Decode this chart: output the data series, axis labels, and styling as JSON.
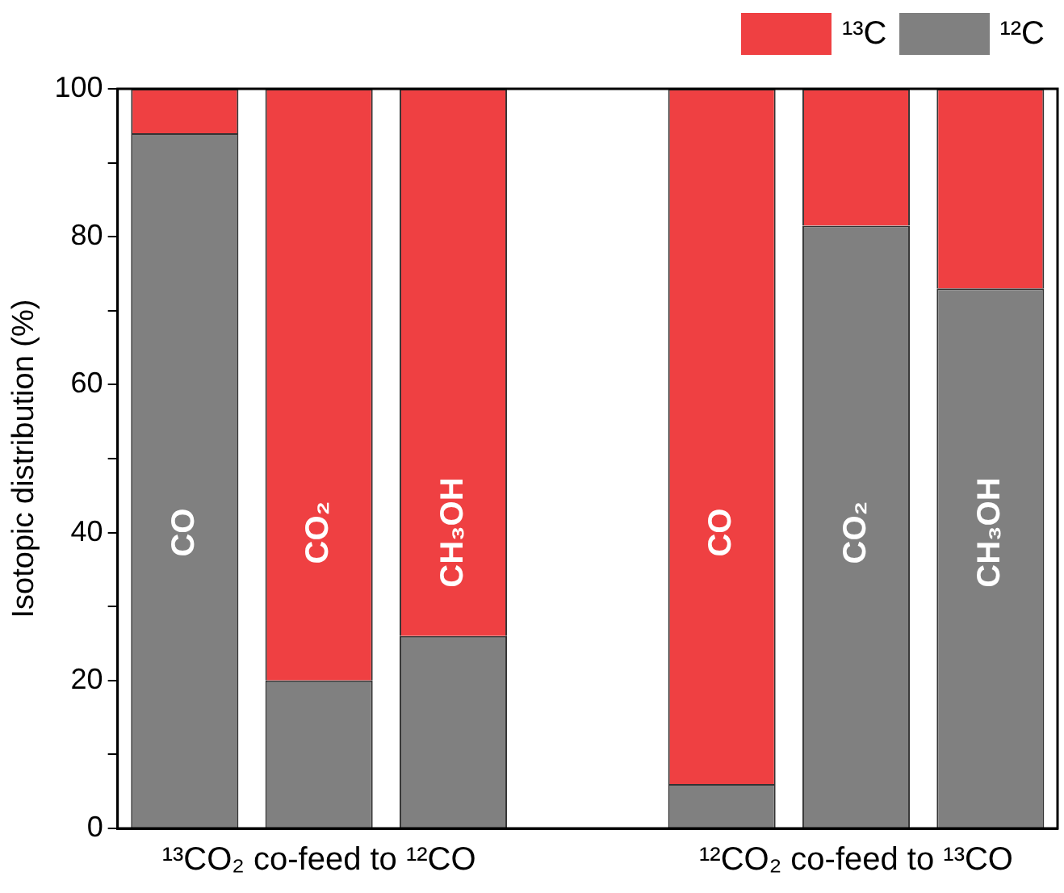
{
  "chart_data": {
    "type": "bar",
    "stacked": true,
    "ylabel": "Isotopic distribution (%)",
    "categories": [
      "CO",
      "CO₂",
      "CH₃OH",
      null,
      "CO",
      "CO₂",
      "CH₃OH"
    ],
    "series": [
      {
        "name": "¹²C",
        "color": "#808080",
        "values": [
          94,
          20,
          26,
          null,
          6,
          81.5,
          73
        ]
      },
      {
        "name": "¹³C",
        "color": "#ef4042",
        "values": [
          6,
          80,
          74,
          null,
          94,
          18.5,
          27
        ]
      }
    ],
    "ylim": [
      0,
      100
    ],
    "yticks": [
      0,
      {
        "value": 10,
        "label": null
      },
      20,
      {
        "value": 30,
        "label": null
      },
      40,
      {
        "value": 50,
        "label": null
      },
      60,
      {
        "value": 70,
        "label": null
      },
      80,
      {
        "value": 90,
        "label": null
      },
      100
    ],
    "annotations": [
      "¹³CO₂ co-feed to ¹²CO",
      "¹²CO₂ co-feed to ¹³CO"
    ],
    "legend": "top right",
    "grid": false
  }
}
